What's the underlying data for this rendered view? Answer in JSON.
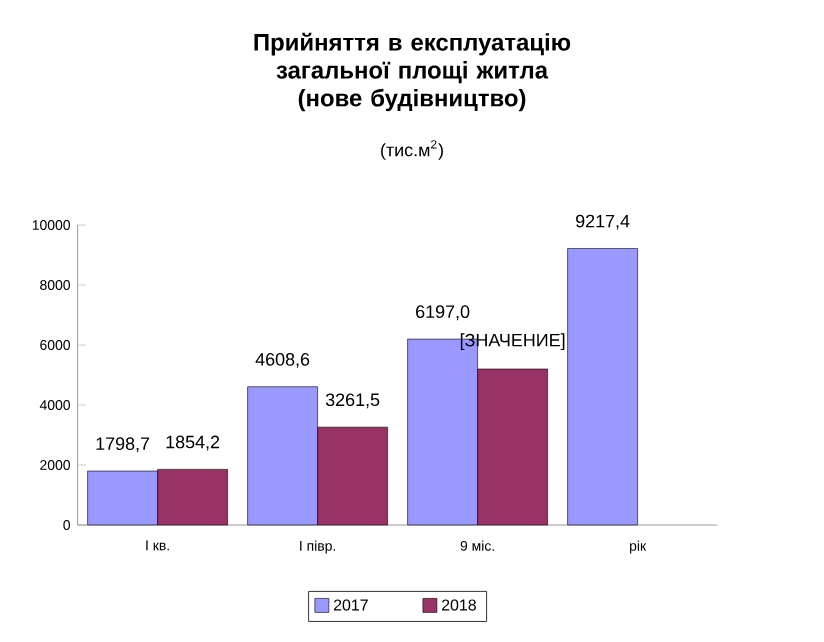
{
  "chart_data": {
    "type": "bar",
    "title": "Прийняття в експлуатацію загальної площі житла (нове будівництво)",
    "subtitle": "(тис.м$^{2}$)",
    "categories": [
      "І кв.",
      "І півр.",
      "9 міс.",
      "рік"
    ],
    "series": [
      {
        "name": "2017",
        "color": "#9999ff",
        "values": [
          1798.7,
          4608.6,
          6197.0,
          9217.4
        ],
        "value_labels": [
          "1798,7",
          "4608,6",
          "6197,0",
          "9217,4"
        ]
      },
      {
        "name": "2018",
        "color": "#993366",
        "values": [
          1854.2,
          3261.5,
          5200,
          null
        ],
        "value_labels": [
          "1854,2",
          "3261,5",
          "[ЗНАЧЕНИЕ]",
          null
        ]
      }
    ],
    "ylim": [
      0,
      10000
    ],
    "yticks": [
      0,
      2000,
      4000,
      6000,
      8000,
      10000
    ],
    "grid": false,
    "legend": "bottom"
  }
}
